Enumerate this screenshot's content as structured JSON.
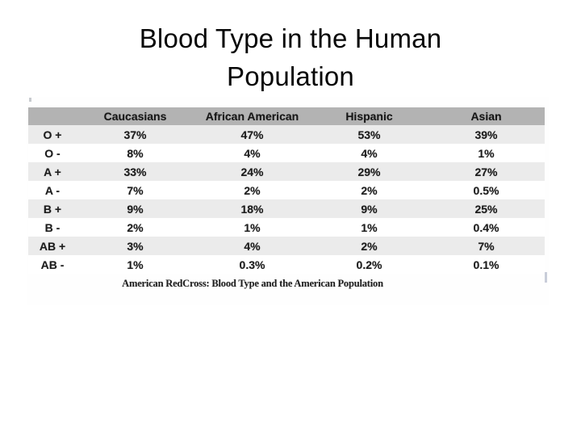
{
  "slide": {
    "title": "Blood Type in the Human Population"
  },
  "table": {
    "columns": [
      "",
      "Caucasians",
      "African American",
      "Hispanic",
      "Asian"
    ],
    "rows": [
      {
        "label": "O +",
        "values": [
          "37%",
          "47%",
          "53%",
          "39%"
        ]
      },
      {
        "label": "O -",
        "values": [
          "8%",
          "4%",
          "4%",
          "1%"
        ]
      },
      {
        "label": "A +",
        "values": [
          "33%",
          "24%",
          "29%",
          "27%"
        ]
      },
      {
        "label": "A -",
        "values": [
          "7%",
          "2%",
          "2%",
          "0.5%"
        ]
      },
      {
        "label": "B +",
        "values": [
          "9%",
          "18%",
          "9%",
          "25%"
        ]
      },
      {
        "label": "B -",
        "values": [
          "2%",
          "1%",
          "1%",
          "0.4%"
        ]
      },
      {
        "label": "AB +",
        "values": [
          "3%",
          "4%",
          "2%",
          "7%"
        ]
      },
      {
        "label": "AB -",
        "values": [
          "1%",
          "0.3%",
          "0.2%",
          "0.1%"
        ]
      }
    ],
    "caption": "American RedCross: Blood Type and the American Population"
  },
  "chart_data": {
    "type": "table",
    "title": "Blood Type in the Human Population",
    "caption": "American RedCross: Blood Type and the American Population",
    "columns": [
      "Caucasians",
      "African American",
      "Hispanic",
      "Asian"
    ],
    "row_labels": [
      "O+",
      "O-",
      "A+",
      "A-",
      "B+",
      "B-",
      "AB+",
      "AB-"
    ],
    "values_percent": [
      [
        37,
        47,
        53,
        39
      ],
      [
        8,
        4,
        4,
        1
      ],
      [
        33,
        24,
        29,
        27
      ],
      [
        7,
        2,
        2,
        0.5
      ],
      [
        9,
        18,
        9,
        25
      ],
      [
        2,
        1,
        1,
        0.4
      ],
      [
        3,
        4,
        2,
        7
      ],
      [
        1,
        0.3,
        0.2,
        0.1
      ]
    ]
  },
  "colors": {
    "header_bg": "#b3b3b3",
    "row_alt_bg": "#ebebeb",
    "row_bg": "#ffffff",
    "text": "#1b1b1b",
    "slide_bg": "#ffffff"
  }
}
